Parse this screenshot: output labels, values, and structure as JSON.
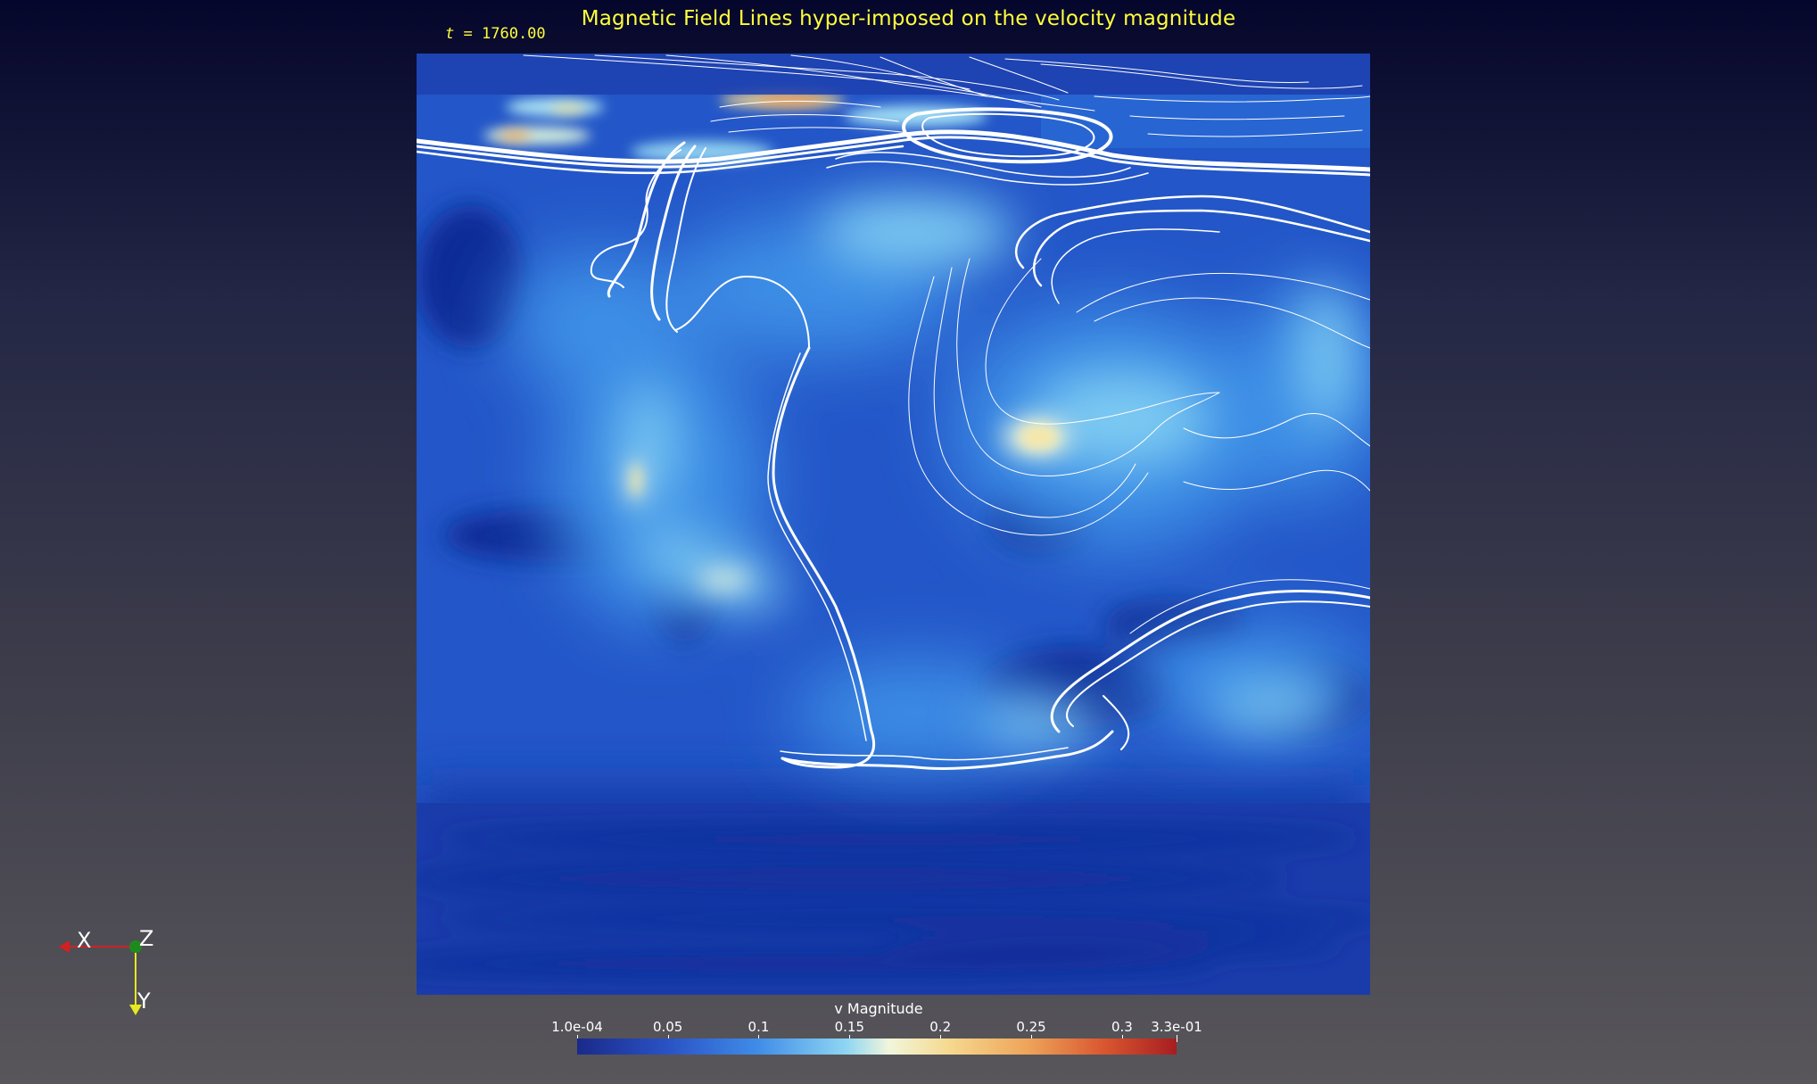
{
  "title": "Magnetic Field Lines hyper-imposed on the velocity magnitude",
  "time_label": {
    "variable": "t",
    "equals": "=",
    "value": "1760.00"
  },
  "colorbar": {
    "title": "v Magnitude",
    "min": 0.0001,
    "max": 0.33,
    "ticks": [
      {
        "label": "1.0e-04",
        "value": 0.0001
      },
      {
        "label": "0.05",
        "value": 0.05
      },
      {
        "label": "0.1",
        "value": 0.1
      },
      {
        "label": "0.15",
        "value": 0.15
      },
      {
        "label": "0.2",
        "value": 0.2
      },
      {
        "label": "0.25",
        "value": 0.25
      },
      {
        "label": "0.3",
        "value": 0.3
      },
      {
        "label": "3.3e-01",
        "value": 0.33
      }
    ],
    "colormap": [
      "#1a2a8a",
      "#2a52c4",
      "#3f8ce8",
      "#8fd6f2",
      "#f1f6dc",
      "#f5d98f",
      "#eea55a",
      "#d9562f",
      "#a71d21"
    ]
  },
  "orientation_axes": {
    "x_label": "X",
    "y_label": "Y",
    "z_label": "Z",
    "x_color": "#d42020",
    "y_color": "#e8e820",
    "z_color": "#1e8a1e"
  },
  "colors": {
    "title_text": "#ffff3c",
    "field_lines": "#ffffff",
    "background_top": "#05062b",
    "background_bottom": "#58565a"
  }
}
